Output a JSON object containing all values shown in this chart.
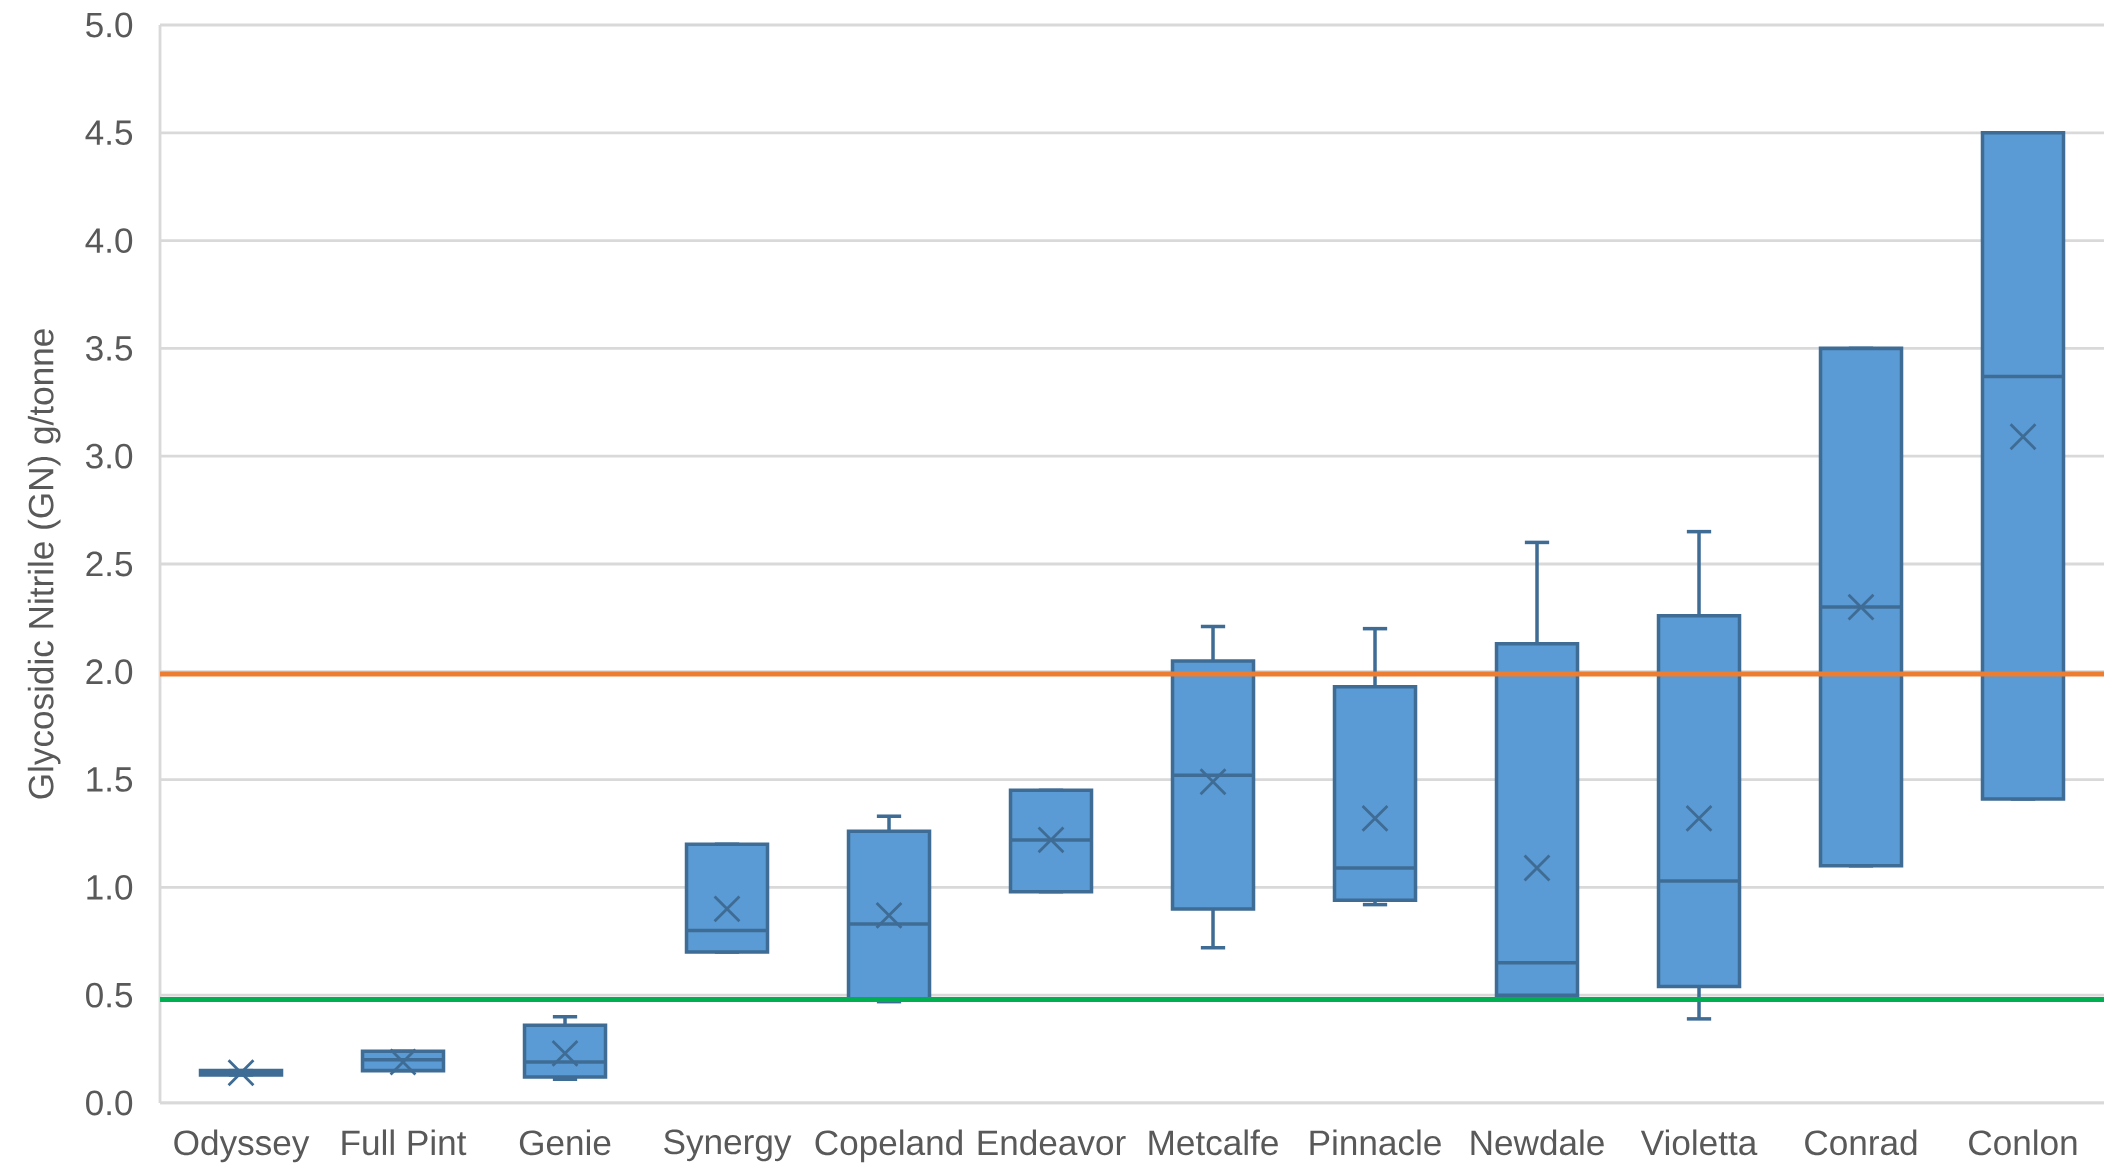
{
  "chart_data": {
    "type": "box",
    "ylabel": "Glycosidic Nitrile (GN) g/tonne",
    "categories": [
      "Odyssey",
      "Full Pint",
      "Genie",
      "Synergy",
      "Copeland",
      "Endeavor",
      "Metcalfe",
      "Pinnacle",
      "Newdale",
      "Violetta",
      "Conrad",
      "Conlon"
    ],
    "color": "#5b9bd5",
    "boxes": [
      {
        "low": 0.13,
        "q1": 0.13,
        "median": 0.14,
        "q3": 0.15,
        "high": 0.15,
        "mean": 0.14
      },
      {
        "low": 0.15,
        "q1": 0.15,
        "median": 0.2,
        "q3": 0.24,
        "high": 0.24,
        "mean": 0.19
      },
      {
        "low": 0.11,
        "q1": 0.12,
        "median": 0.19,
        "q3": 0.36,
        "high": 0.4,
        "mean": 0.23
      },
      {
        "low": 0.7,
        "q1": 0.7,
        "median": 0.8,
        "q3": 1.2,
        "high": 1.2,
        "mean": 0.9
      },
      {
        "low": 0.47,
        "q1": 0.48,
        "median": 0.83,
        "q3": 1.26,
        "high": 1.33,
        "mean": 0.87
      },
      {
        "low": 0.98,
        "q1": 0.98,
        "median": 1.22,
        "q3": 1.45,
        "high": 1.45,
        "mean": 1.22
      },
      {
        "low": 0.72,
        "q1": 0.9,
        "median": 1.52,
        "q3": 2.05,
        "high": 2.21,
        "mean": 1.49
      },
      {
        "low": 0.92,
        "q1": 0.94,
        "median": 1.09,
        "q3": 1.93,
        "high": 2.2,
        "mean": 1.32
      },
      {
        "low": 0.49,
        "q1": 0.5,
        "median": 0.65,
        "q3": 2.13,
        "high": 2.6,
        "mean": 1.09
      },
      {
        "low": 0.39,
        "q1": 0.54,
        "median": 1.03,
        "q3": 2.26,
        "high": 2.65,
        "mean": 1.32
      },
      {
        "low": 1.1,
        "q1": 1.1,
        "median": 2.3,
        "q3": 3.5,
        "high": 3.5,
        "mean": 2.3
      },
      {
        "low": 1.41,
        "q1": 1.41,
        "median": 3.37,
        "q3": 4.5,
        "high": 4.5,
        "mean": 3.09
      }
    ],
    "ylim": [
      0,
      5
    ],
    "yticks": [
      {
        "value": 0,
        "label": "0.0"
      },
      {
        "value": 0.5,
        "label": "0.5"
      },
      {
        "value": 1,
        "label": "1.0"
      },
      {
        "value": 1.5,
        "label": "1.5"
      },
      {
        "value": 2,
        "label": "2.0"
      },
      {
        "value": 2.5,
        "label": "2.5"
      },
      {
        "value": 3,
        "label": "3.0"
      },
      {
        "value": 3.5,
        "label": "3.5"
      },
      {
        "value": 4,
        "label": "4.0"
      },
      {
        "value": 4.5,
        "label": "4.5"
      },
      {
        "value": 5,
        "label": "5.0"
      }
    ],
    "grid": "y",
    "ref_lines": [
      {
        "axis": "y",
        "value": 1.99,
        "color": "#ed7d31"
      },
      {
        "axis": "y",
        "value": 0.48,
        "color": "#00b050"
      }
    ]
  }
}
